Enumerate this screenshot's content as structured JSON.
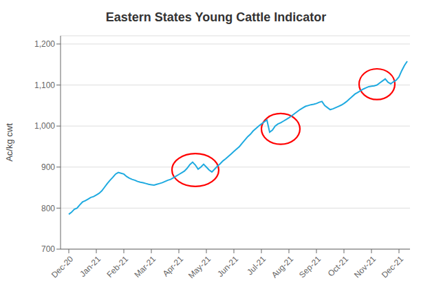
{
  "chart_data": {
    "type": "line",
    "title": "Eastern States Young Cattle Indicator",
    "ylabel": "Ac/kg cwt",
    "color": "#1EAAE0",
    "grid": true,
    "x": [
      0,
      0.1,
      0.2,
      0.3,
      0.4,
      0.5,
      0.6,
      0.7,
      0.8,
      0.9,
      1.0,
      1.1,
      1.2,
      1.3,
      1.4,
      1.5,
      1.6,
      1.7,
      1.8,
      1.9,
      2.0,
      2.1,
      2.2,
      2.3,
      2.4,
      2.5,
      2.6,
      2.7,
      2.8,
      2.9,
      3.0,
      3.1,
      3.2,
      3.3,
      3.4,
      3.5,
      3.6,
      3.7,
      3.8,
      3.9,
      4.0,
      4.1,
      4.2,
      4.3,
      4.4,
      4.5,
      4.6,
      4.7,
      4.8,
      4.9,
      5.0,
      5.1,
      5.2,
      5.3,
      5.4,
      5.5,
      5.6,
      5.7,
      5.8,
      5.9,
      6.0,
      6.1,
      6.2,
      6.3,
      6.4,
      6.5,
      6.6,
      6.7,
      6.8,
      6.9,
      7.0,
      7.1,
      7.2,
      7.3,
      7.4,
      7.5,
      7.6,
      7.7,
      7.8,
      7.9,
      8.0,
      8.1,
      8.2,
      8.3,
      8.4,
      8.5,
      8.6,
      8.7,
      8.8,
      8.9,
      9.0,
      9.1,
      9.2,
      9.3,
      9.4,
      9.5,
      9.6,
      9.7,
      9.8,
      9.9,
      10.0,
      10.1,
      10.2,
      10.3,
      10.4,
      10.5,
      10.6,
      10.7,
      10.8,
      10.9,
      11.0,
      11.1,
      11.2,
      11.3,
      11.4,
      11.5,
      11.6,
      11.7,
      11.8,
      11.9,
      12.0,
      12.1,
      12.2,
      12.3
    ],
    "values": [
      785,
      790,
      797,
      800,
      808,
      815,
      818,
      822,
      826,
      828,
      832,
      836,
      842,
      851,
      860,
      868,
      875,
      883,
      887,
      885,
      883,
      877,
      873,
      870,
      868,
      865,
      863,
      862,
      860,
      858,
      857,
      856,
      858,
      860,
      862,
      865,
      868,
      870,
      874,
      878,
      882,
      886,
      890,
      897,
      906,
      912,
      905,
      895,
      900,
      907,
      900,
      893,
      888,
      895,
      902,
      908,
      915,
      920,
      926,
      932,
      938,
      944,
      950,
      958,
      966,
      974,
      980,
      988,
      994,
      1000,
      1005,
      1010,
      1015,
      985,
      990,
      1000,
      1005,
      1008,
      1012,
      1016,
      1020,
      1025,
      1030,
      1035,
      1040,
      1044,
      1048,
      1050,
      1052,
      1053,
      1055,
      1058,
      1060,
      1050,
      1045,
      1040,
      1042,
      1045,
      1048,
      1051,
      1055,
      1060,
      1066,
      1072,
      1078,
      1082,
      1086,
      1090,
      1093,
      1096,
      1097,
      1098,
      1100,
      1105,
      1110,
      1115,
      1107,
      1103,
      1108,
      1112,
      1120,
      1135,
      1148,
      1158
    ],
    "xlim": [
      -0.3,
      12.4
    ],
    "xticks": [
      {
        "value": 0,
        "label": "Dec-20"
      },
      {
        "value": 1,
        "label": "Jan-21"
      },
      {
        "value": 2,
        "label": "Feb-21"
      },
      {
        "value": 3,
        "label": "Mar-21"
      },
      {
        "value": 4,
        "label": "Apr-21"
      },
      {
        "value": 5,
        "label": "May-21"
      },
      {
        "value": 6,
        "label": "Jun-21"
      },
      {
        "value": 7,
        "label": "Jul-21"
      },
      {
        "value": 8,
        "label": "Aug-21"
      },
      {
        "value": 9,
        "label": "Sep-21"
      },
      {
        "value": 10,
        "label": "Oct-21"
      },
      {
        "value": 11,
        "label": "Nov-21"
      },
      {
        "value": 12,
        "label": "Dec-21"
      }
    ],
    "ylim": [
      700,
      1220
    ],
    "yticks": [
      700,
      800,
      900,
      {
        "value": 1000,
        "label": "1,000"
      },
      {
        "value": 1100,
        "label": "1,100"
      },
      {
        "value": 1200,
        "label": "1,200"
      }
    ],
    "ellipses": [
      {
        "x": 4.6,
        "y": 893,
        "width": 1.7,
        "height": 80,
        "color": "red"
      },
      {
        "x": 7.7,
        "y": 993,
        "width": 1.4,
        "height": 75,
        "color": "red"
      },
      {
        "x": 11.2,
        "y": 1102,
        "width": 1.3,
        "height": 75,
        "color": "red"
      }
    ]
  }
}
